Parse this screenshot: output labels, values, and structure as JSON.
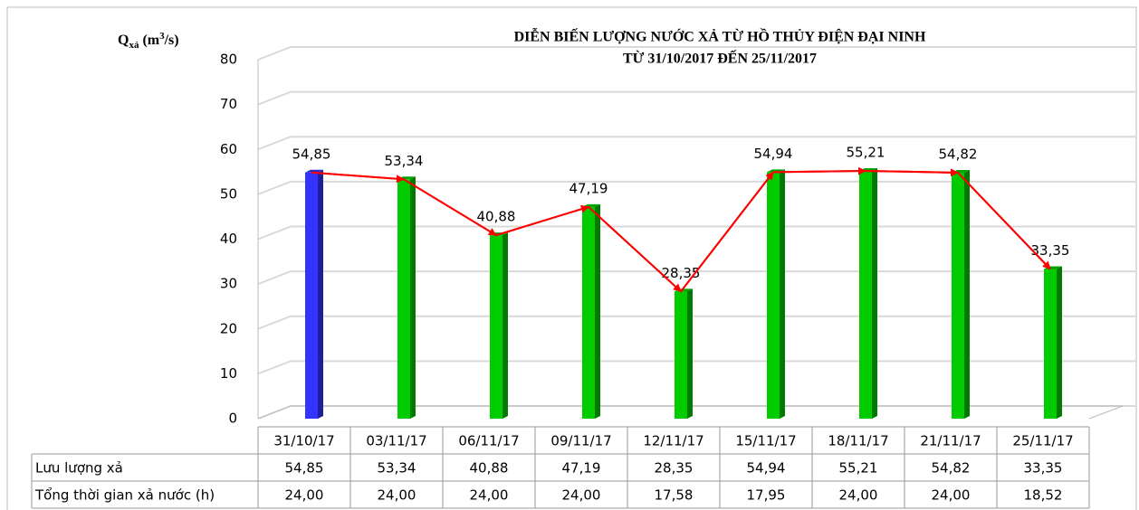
{
  "chart_data": {
    "type": "bar",
    "title": "DIỄN BIẾN LƯỢNG NƯỚC XẢ TỪ HỒ THỦY ĐIỆN ĐẠI NINH",
    "subtitle": "TỪ 31/10/2017 ĐẾN 25/11/2017",
    "y_label_parts": [
      "Q",
      "xả",
      " (m",
      "3",
      "/s)"
    ],
    "categories": [
      "31/10/17",
      "03/11/17",
      "06/11/17",
      "09/11/17",
      "12/11/17",
      "15/11/17",
      "18/11/17",
      "21/11/17",
      "25/11/17"
    ],
    "values": [
      54.85,
      53.34,
      40.88,
      47.19,
      28.35,
      54.94,
      55.21,
      54.82,
      33.35
    ],
    "value_labels": [
      "54,85",
      "53,34",
      "40,88",
      "47,19",
      "28,35",
      "54,94",
      "55,21",
      "54,82",
      "33,35"
    ],
    "colors": [
      "#3333ff",
      "#00cc00",
      "#00cc00",
      "#00cc00",
      "#00cc00",
      "#00cc00",
      "#00cc00",
      "#00cc00",
      "#00cc00"
    ],
    "line_color": "#ff0000",
    "ylim": [
      0,
      80
    ],
    "yticks": [
      0,
      10,
      20,
      30,
      40,
      50,
      60,
      70,
      80
    ],
    "grid": true,
    "table_rows": [
      {
        "name": "Lưu lượng xả"
      },
      {
        "name": "Tổng thời gian xả nước (h)",
        "values": [
          24,
          24,
          24,
          24,
          17.58,
          17.95,
          24,
          24,
          18.52
        ],
        "value_labels": [
          "24,00",
          "24,00",
          "24,00",
          "24,00",
          "17,58",
          "17,95",
          "24,00",
          "24,00",
          "18,52"
        ]
      }
    ]
  }
}
